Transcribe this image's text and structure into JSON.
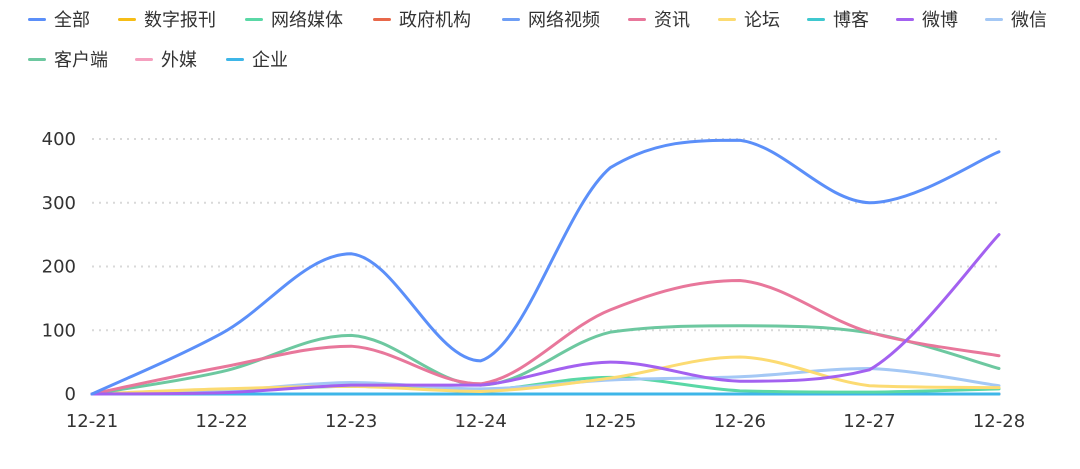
{
  "chart_data": {
    "type": "line",
    "title": "",
    "xlabel": "",
    "ylabel": "",
    "categories": [
      "12-21",
      "12-22",
      "12-23",
      "12-24",
      "12-25",
      "12-26",
      "12-27",
      "12-28"
    ],
    "ylim": [
      0,
      400
    ],
    "yticks": [
      "0",
      "100",
      "200",
      "300",
      "400"
    ],
    "grid": "horizontal-dotted",
    "legend_position": "top-left",
    "series": [
      {
        "name": "全部",
        "color": "#5b8ff9",
        "values": [
          0,
          95,
          220,
          52,
          355,
          398,
          300,
          380
        ]
      },
      {
        "name": "数字报刊",
        "color": "#f6bd16",
        "values": [
          0,
          0,
          0,
          0,
          0,
          0,
          0,
          0
        ]
      },
      {
        "name": "网络媒体",
        "color": "#5ad8a6",
        "values": [
          0,
          5,
          12,
          6,
          26,
          5,
          3,
          8
        ]
      },
      {
        "name": "政府机构",
        "color": "#e8684a",
        "values": [
          0,
          0,
          0,
          0,
          0,
          0,
          0,
          0
        ]
      },
      {
        "name": "网络视频",
        "color": "#6e9ef5",
        "values": [
          0,
          0,
          0,
          0,
          0,
          0,
          0,
          0
        ]
      },
      {
        "name": "资讯",
        "color": "#e8779b",
        "values": [
          0,
          42,
          75,
          16,
          132,
          178,
          97,
          60
        ]
      },
      {
        "name": "论坛",
        "color": "#fcdb72",
        "values": [
          0,
          8,
          12,
          4,
          25,
          58,
          13,
          10
        ]
      },
      {
        "name": "博客",
        "color": "#3fc8cf",
        "values": [
          0,
          0,
          0,
          0,
          0,
          0,
          0,
          0
        ]
      },
      {
        "name": "微博",
        "color": "#a361f0",
        "values": [
          0,
          2,
          14,
          14,
          50,
          20,
          38,
          250
        ]
      },
      {
        "name": "微信",
        "color": "#a4c8f5",
        "values": [
          0,
          5,
          18,
          8,
          22,
          27,
          40,
          13
        ]
      },
      {
        "name": "客户端",
        "color": "#6dc8a0",
        "values": [
          0,
          35,
          92,
          14,
          97,
          107,
          96,
          40
        ]
      },
      {
        "name": "外媒",
        "color": "#f5a0bf",
        "values": [
          0,
          0,
          0,
          0,
          0,
          0,
          0,
          0
        ]
      },
      {
        "name": "企业",
        "color": "#3eb6e8",
        "values": [
          0,
          0,
          0,
          0,
          0,
          0,
          0,
          0
        ]
      }
    ]
  }
}
